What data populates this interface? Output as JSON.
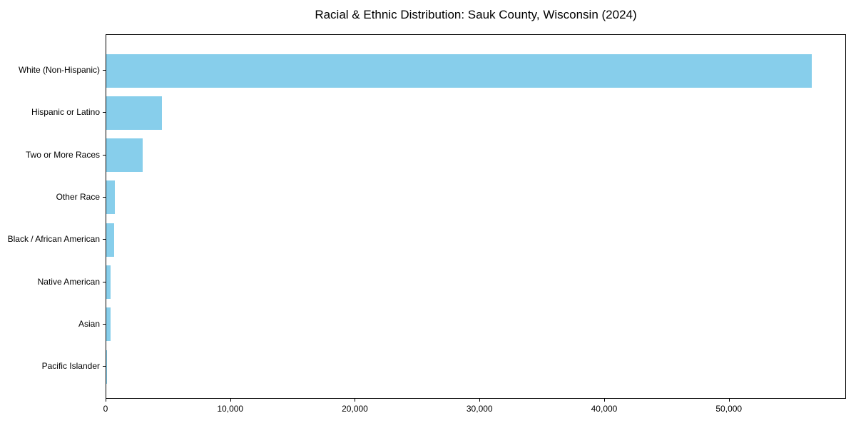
{
  "chart_data": {
    "type": "bar",
    "orientation": "horizontal",
    "title": "Racial & Ethnic Distribution: Sauk County, Wisconsin (2024)",
    "categories": [
      "White (Non-Hispanic)",
      "Hispanic or Latino",
      "Two or More Races",
      "Other Race",
      "Black / African American",
      "Native American",
      "Asian",
      "Pacific Islander"
    ],
    "values": [
      56600,
      4450,
      2900,
      680,
      620,
      370,
      350,
      20
    ],
    "xlabel": "",
    "ylabel": "",
    "xlim": [
      0,
      59400
    ],
    "x_ticks": [
      0,
      10000,
      20000,
      30000,
      40000,
      50000
    ],
    "x_tick_labels": [
      "0",
      "10,000",
      "20,000",
      "30,000",
      "40,000",
      "50,000"
    ],
    "bar_color": "#87CEEB",
    "spine_color": "#000000",
    "grid": false,
    "legend": null
  }
}
